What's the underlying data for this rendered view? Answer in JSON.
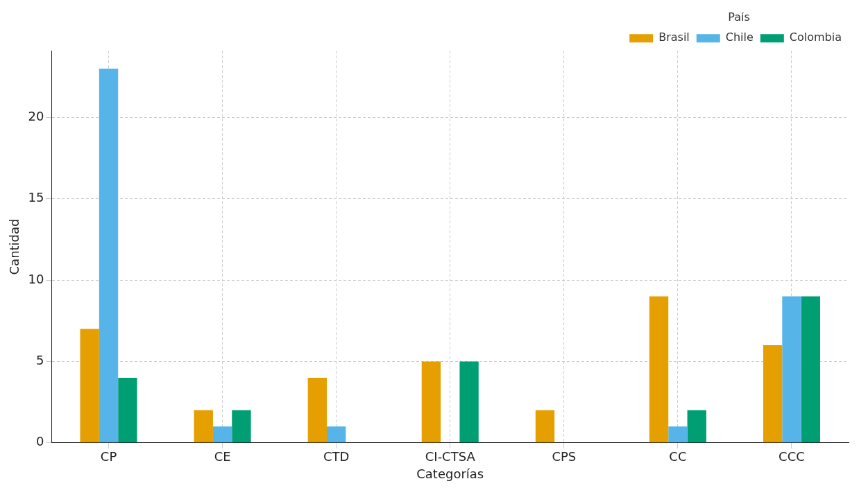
{
  "chart_data": {
    "type": "bar",
    "xlabel": "Categorías",
    "ylabel": "Cantidad",
    "legend_title": "País",
    "categories": [
      "CP",
      "CE",
      "CTD",
      "CI-CTSA",
      "CPS",
      "CC",
      "CCC"
    ],
    "series": [
      {
        "name": "Brasil",
        "color": "#e69f00",
        "values": [
          7,
          2,
          4,
          5,
          2,
          9,
          6
        ]
      },
      {
        "name": "Chile",
        "color": "#56b4e9",
        "values": [
          23,
          1,
          1,
          0,
          0,
          1,
          9
        ]
      },
      {
        "name": "Colombia",
        "color": "#009e73",
        "values": [
          4,
          2,
          0,
          5,
          0,
          2,
          9
        ]
      }
    ],
    "ylim": [
      0,
      24.1
    ],
    "yticks": [
      0,
      5,
      10,
      15,
      20
    ],
    "grid": true,
    "legend": "top right"
  }
}
